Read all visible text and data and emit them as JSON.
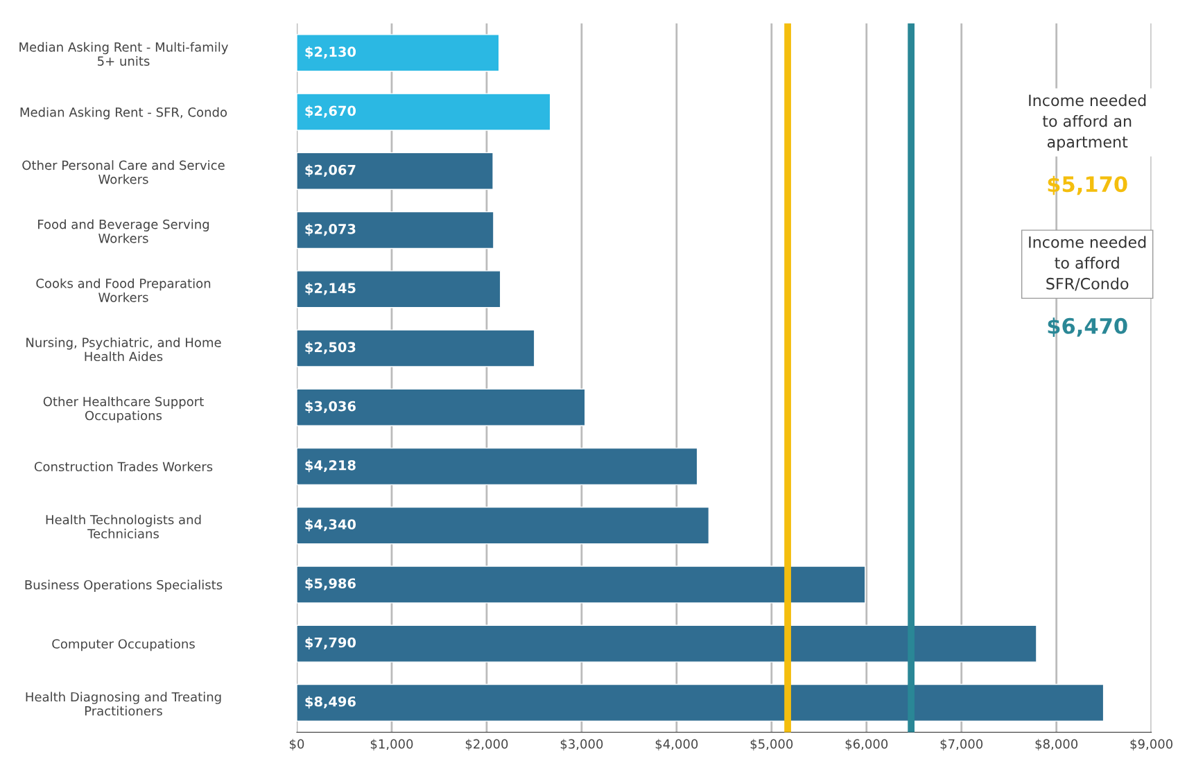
{
  "chart_data": {
    "type": "bar",
    "orientation": "horizontal",
    "categories": [
      "Median Asking Rent - Multi-family\n5+ units",
      "Median Asking Rent - SFR, Condo",
      "Other Personal Care and Service\nWorkers",
      "Food and Beverage Serving\nWorkers",
      "Cooks and Food Preparation\nWorkers",
      "Nursing, Psychiatric, and Home\nHealth Aides",
      "Other Healthcare Support\nOccupations",
      "Construction Trades Workers",
      "Health Technologists and\nTechnicians",
      "Business Operations Specialists",
      "Computer Occupations",
      "Health Diagnosing and Treating\nPractitioners"
    ],
    "values": [
      2130,
      2670,
      2067,
      2073,
      2145,
      2503,
      3036,
      4218,
      4340,
      5986,
      7790,
      8496
    ],
    "value_labels": [
      "$2,130",
      "$2,670",
      "$2,067",
      "$2,073",
      "$2,145",
      "$2,503",
      "$3,036",
      "$4,218",
      "$4,340",
      "$5,986",
      "$7,790",
      "$8,496"
    ],
    "colors": [
      "#2bb8e3",
      "#2bb8e3",
      "#306d91",
      "#306d91",
      "#306d91",
      "#306d91",
      "#306d91",
      "#306d91",
      "#306d91",
      "#306d91",
      "#306d91",
      "#306d91"
    ],
    "xlim": [
      0,
      9000
    ],
    "xticks": [
      {
        "value": 0,
        "label": "$0"
      },
      {
        "value": 1000,
        "label": "$1,000"
      },
      {
        "value": 2000,
        "label": "$2,000"
      },
      {
        "value": 3000,
        "label": "$3,000"
      },
      {
        "value": 4000,
        "label": "$4,000"
      },
      {
        "value": 5000,
        "label": "$5,000"
      },
      {
        "value": 6000,
        "label": "$6,000"
      },
      {
        "value": 7000,
        "label": "$7,000"
      },
      {
        "value": 8000,
        "label": "$8,000"
      },
      {
        "value": 9000,
        "label": "$9,000"
      }
    ],
    "grid": "x",
    "ref_lines": [
      {
        "axis": "x",
        "value": 5170,
        "label": "Income needed\nto afford an\napartment\n$5,170",
        "color": "#f4be0e"
      },
      {
        "axis": "x",
        "value": 6470,
        "label": "Income needed\nto afford\nSFR/Condo\n$6,470",
        "color": "#2a8796"
      }
    ]
  }
}
